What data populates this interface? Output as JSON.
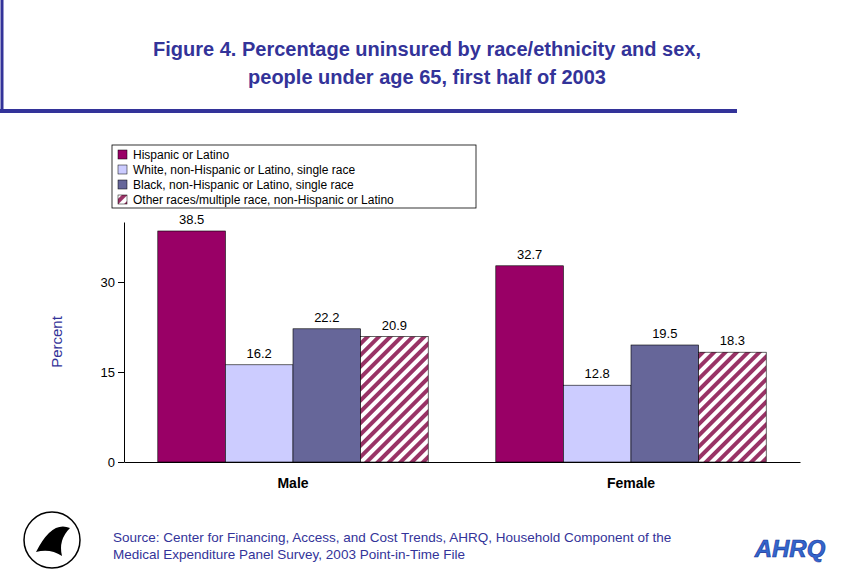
{
  "chart_data": {
    "type": "bar",
    "title": [
      "Figure 4. Percentage uninsured by race/ethnicity and sex,",
      "people under age 65, first half of 2003"
    ],
    "y_label": "Percent",
    "categories": [
      "Male",
      "Female"
    ],
    "series": [
      {
        "name": "Hispanic or Latino",
        "color": "#990066",
        "values": [
          38.5,
          32.7
        ]
      },
      {
        "name": "White, non-Hispanic or Latino, single race",
        "color": "#ccccff",
        "values": [
          16.2,
          12.8
        ]
      },
      {
        "name": "Black, non-Hispanic or Latino, single race",
        "color": "#666699",
        "values": [
          22.2,
          19.5
        ]
      },
      {
        "name": "Other races/multiple race, non-Hispanic or Latino",
        "color": "#993366",
        "marker": "hatch",
        "values": [
          20.9,
          18.3
        ]
      }
    ],
    "ylim": [
      0,
      40
    ],
    "yticks": [
      0,
      15,
      30
    ],
    "grid": false,
    "legend": "top-left",
    "data_labels": true,
    "source": [
      "Source: Center for Financing, Access, and Cost Trends, AHRQ, Household Component of the",
      "Medical Expenditure Panel Survey, 2003 Point-in-Time File"
    ],
    "logo": "AHRQ"
  }
}
